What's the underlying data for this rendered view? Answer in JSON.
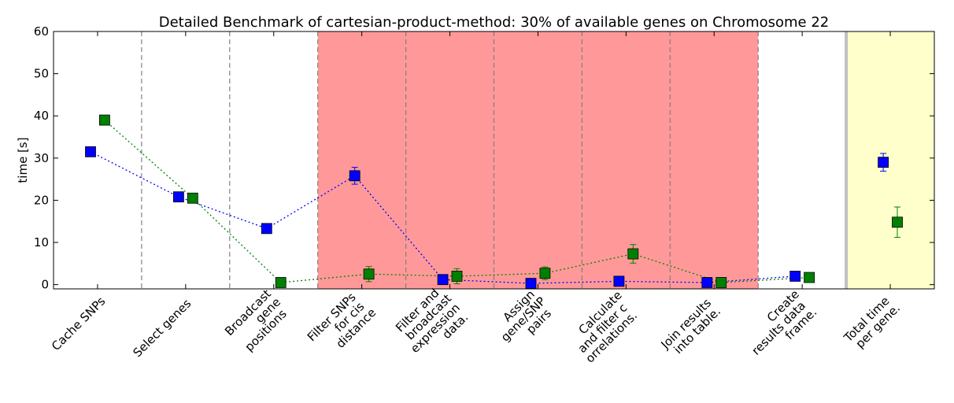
{
  "chart_data": {
    "type": "scatter",
    "title": "Detailed Benchmark of cartesian-product-method: 30% of available genes on Chromosome 22",
    "xlabel": "",
    "ylabel": "time [s]",
    "ylim": [
      -1,
      60
    ],
    "yticks": [
      0,
      10,
      20,
      30,
      40,
      50,
      60
    ],
    "grid": false,
    "categories": [
      [
        "Cache SNPs"
      ],
      [
        "Select genes"
      ],
      [
        "Broadcast",
        "gene",
        "positions"
      ],
      [
        "Filter SNPs",
        "for cis",
        "distance"
      ],
      [
        "Filter and",
        "broadcast",
        "expression",
        "data."
      ],
      [
        "Assign",
        "gene/SNP",
        "pairs"
      ],
      [
        "Calculate",
        "and filter c",
        "orrelations."
      ],
      [
        "Join results",
        "into table."
      ],
      [
        "Create",
        "results data",
        "frame."
      ],
      [
        "Total time",
        "per gene."
      ]
    ],
    "highlight_regions": [
      {
        "from_category": 3,
        "to_category": 7,
        "color": "#ff9999"
      },
      {
        "from_category": 9,
        "to_category": 9,
        "color": "#ffffcc"
      }
    ],
    "series": [
      {
        "color": "#0000ff",
        "values": [
          31.5,
          20.8,
          13.3,
          25.8,
          1.2,
          0.3,
          0.8,
          0.5,
          2.0,
          29.0
        ],
        "errors": [
          0,
          0,
          0,
          2.0,
          0,
          0,
          0,
          0,
          0,
          2.1
        ]
      },
      {
        "color": "#008000",
        "values": [
          39.0,
          20.5,
          0.5,
          2.5,
          2.0,
          2.7,
          7.3,
          0.5,
          1.7,
          14.8
        ],
        "errors": [
          0,
          0,
          0,
          1.8,
          1.8,
          1.5,
          2.2,
          0,
          0,
          3.6
        ]
      }
    ]
  }
}
